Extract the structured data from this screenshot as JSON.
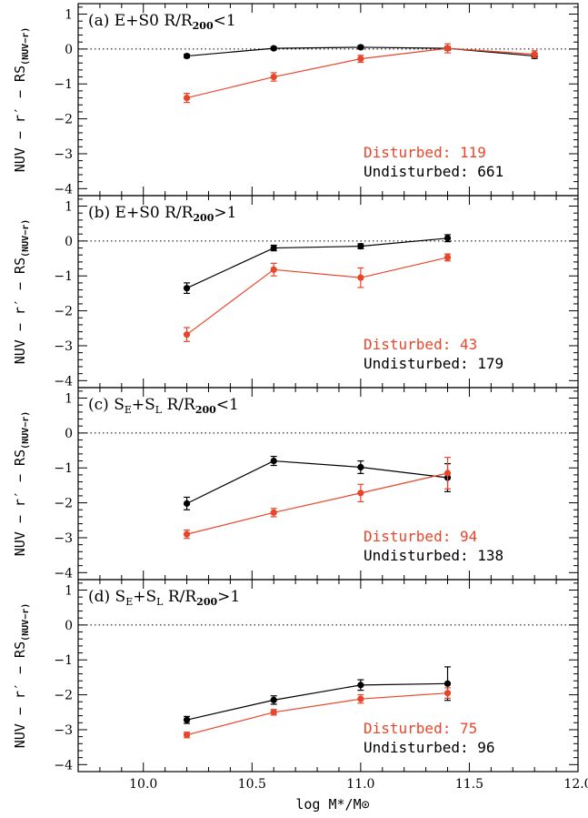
{
  "colors": {
    "disturbed": "#e8462a",
    "undisturbed": "#000000"
  },
  "chart_data": [
    {
      "type": "line",
      "label_prefix": "(a) E+S0 R/R",
      "label_sub": "200",
      "label_suffix": "<1",
      "x": [
        10.2,
        10.6,
        11.0,
        11.4,
        11.8
      ],
      "xlim": [
        9.7,
        12.0
      ],
      "ylim": [
        -4.2,
        1.3
      ],
      "ylabel_main": "NUV − r′ − RS",
      "ylabel_sub": "(NUV−r)",
      "counts": {
        "disturbed_label": "Disturbed: 119",
        "undisturbed_label": "Undisturbed: 661"
      },
      "series": [
        {
          "key": "undisturbed",
          "values": [
            -0.2,
            0.02,
            0.05,
            0.02,
            -0.2
          ],
          "errors": [
            0.05,
            0.04,
            0.05,
            0.05,
            0.07
          ]
        },
        {
          "key": "disturbed",
          "values": [
            -1.4,
            -0.8,
            -0.28,
            0.02,
            -0.15
          ],
          "errors": [
            0.13,
            0.12,
            0.1,
            0.13,
            0.1
          ]
        }
      ]
    },
    {
      "type": "line",
      "label_prefix": "(b) E+S0 R/R",
      "label_sub": "200",
      "label_suffix": ">1",
      "x": [
        10.2,
        10.6,
        11.0,
        11.4
      ],
      "xlim": [
        9.7,
        12.0
      ],
      "ylim": [
        -4.2,
        1.3
      ],
      "ylabel_main": "NUV − r′ − RS",
      "ylabel_sub": "(NUV−r)",
      "counts": {
        "disturbed_label": "Disturbed: 43",
        "undisturbed_label": "Undisturbed: 179"
      },
      "series": [
        {
          "key": "undisturbed",
          "values": [
            -1.35,
            -0.2,
            -0.15,
            0.08
          ],
          "errors": [
            0.15,
            0.08,
            0.07,
            0.1
          ]
        },
        {
          "key": "disturbed",
          "values": [
            -2.68,
            -0.82,
            -1.05,
            -0.47
          ],
          "errors": [
            0.2,
            0.18,
            0.28,
            0.1
          ]
        }
      ]
    },
    {
      "type": "line",
      "label_prefix": "(c) S",
      "label_sub_e": "E",
      "label_mid": "+S",
      "label_sub_l": "L",
      "label_tail": " R/R",
      "label_sub": "200",
      "label_suffix": "<1",
      "x": [
        10.2,
        10.6,
        11.0,
        11.4
      ],
      "xlim": [
        9.7,
        12.0
      ],
      "ylim": [
        -4.2,
        1.3
      ],
      "ylabel_main": "NUV − r′ − RS",
      "ylabel_sub": "(NUV−r)",
      "counts": {
        "disturbed_label": "Disturbed: 94",
        "undisturbed_label": "Undisturbed: 138"
      },
      "series": [
        {
          "key": "undisturbed",
          "values": [
            -2.02,
            -0.8,
            -0.98,
            -1.28
          ],
          "errors": [
            0.18,
            0.13,
            0.18,
            0.4
          ]
        },
        {
          "key": "disturbed",
          "values": [
            -2.9,
            -2.28,
            -1.72,
            -1.15
          ],
          "errors": [
            0.12,
            0.12,
            0.25,
            0.45
          ]
        }
      ]
    },
    {
      "type": "line",
      "label_prefix": "(d) S",
      "label_sub_e": "E",
      "label_mid": "+S",
      "label_sub_l": "L",
      "label_tail": " R/R",
      "label_sub": "200",
      "label_suffix": ">1",
      "x": [
        10.2,
        10.6,
        11.0,
        11.4
      ],
      "xlim": [
        9.7,
        12.0
      ],
      "ylim": [
        -4.2,
        1.3
      ],
      "ylabel_main": "NUV − r′ − RS",
      "ylabel_sub": "(NUV−r)",
      "counts": {
        "disturbed_label": "Disturbed: 75",
        "undisturbed_label": "Undisturbed: 96"
      },
      "series": [
        {
          "key": "undisturbed",
          "values": [
            -2.72,
            -2.15,
            -1.72,
            -1.68
          ],
          "errors": [
            0.1,
            0.12,
            0.15,
            0.48
          ]
        },
        {
          "key": "disturbed",
          "values": [
            -3.15,
            -2.5,
            -2.12,
            -1.95
          ],
          "errors": [
            0.08,
            0.08,
            0.12,
            0.15
          ]
        }
      ]
    }
  ],
  "axes": {
    "xticks": [
      "10.0",
      "10.5",
      "11.0",
      "11.5",
      "12.0"
    ],
    "xtick_values": [
      10.0,
      10.5,
      11.0,
      11.5,
      12.0
    ],
    "yticks": [
      "1",
      "0",
      "−1",
      "−2",
      "−3",
      "−4"
    ],
    "ytick_values": [
      1,
      0,
      -1,
      -2,
      -3,
      -4
    ],
    "xlabel": "log M*/M⊙"
  }
}
